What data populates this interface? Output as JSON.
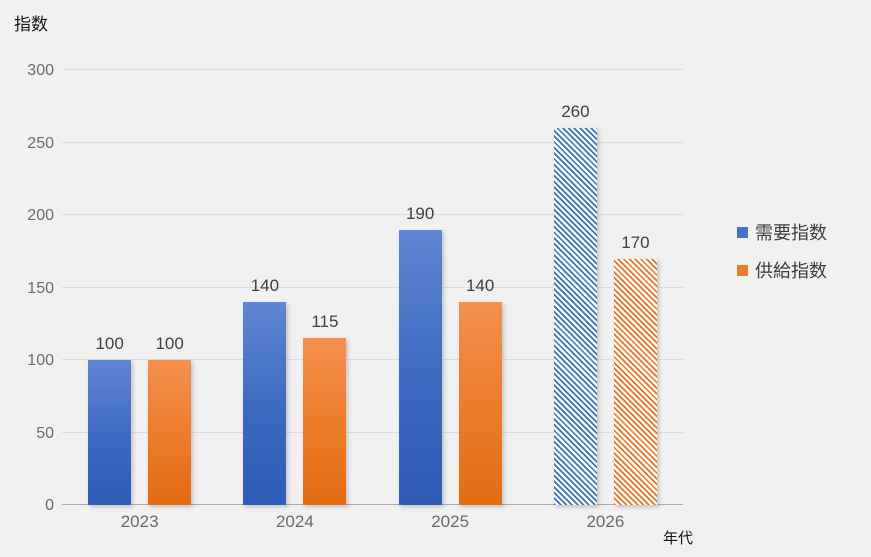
{
  "chart_data": {
    "type": "bar",
    "title": "",
    "ylabel": "指数",
    "xlabel": "年代",
    "categories": [
      "2023",
      "2024",
      "2025",
      "2026"
    ],
    "series": [
      {
        "name": "需要指数",
        "color": "#4472c4",
        "values": [
          100,
          140,
          190,
          260
        ]
      },
      {
        "name": "供給指数",
        "color": "#ed7d31",
        "values": [
          100,
          115,
          140,
          170
        ]
      }
    ],
    "forecast_categories": [
      "2026"
    ],
    "forecast_style": "diagonal-hatch",
    "data_labels": [
      [
        "100",
        "140",
        "190",
        "260"
      ],
      [
        "100",
        "115",
        "140",
        "170"
      ]
    ],
    "yticks": [
      "0",
      "50",
      "100",
      "150",
      "200",
      "250",
      "300"
    ],
    "ylim": [
      0,
      300
    ],
    "grid": true,
    "legend_position": "right",
    "background_color": "#f1f1f1"
  },
  "legend": {
    "items": [
      {
        "label": "需要指数",
        "color": "#4472c4"
      },
      {
        "label": "供給指数",
        "color": "#ed7d31"
      }
    ]
  }
}
